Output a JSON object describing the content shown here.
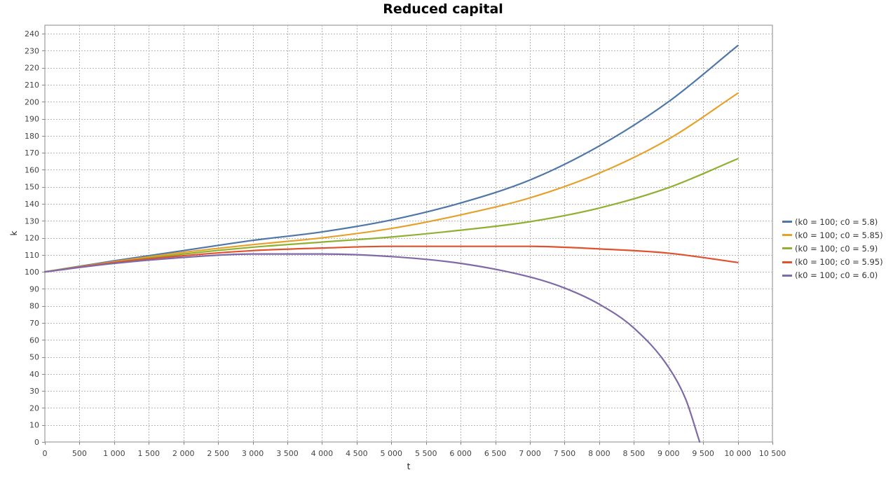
{
  "chart_data": {
    "type": "line",
    "title": "Reduced capital",
    "xlabel": "t",
    "ylabel": "k",
    "xlim": [
      0,
      10500
    ],
    "ylim": [
      0,
      245
    ],
    "x_ticks": [
      0,
      500,
      1000,
      1500,
      2000,
      2500,
      3000,
      3500,
      4000,
      4500,
      5000,
      5500,
      6000,
      6500,
      7000,
      7500,
      8000,
      8500,
      9000,
      9500,
      10000,
      10500
    ],
    "x_tick_labels": [
      "0",
      "500",
      "1 000",
      "1 500",
      "2 000",
      "2 500",
      "3 000",
      "3 500",
      "4 000",
      "4 500",
      "5 000",
      "5 500",
      "6 000",
      "6 500",
      "7 000",
      "7 500",
      "8 000",
      "8 500",
      "9 000",
      "9 500",
      "10 000",
      "10 500"
    ],
    "y_ticks": [
      0,
      10,
      20,
      30,
      40,
      50,
      60,
      70,
      80,
      90,
      100,
      110,
      120,
      130,
      140,
      150,
      160,
      170,
      180,
      190,
      200,
      210,
      220,
      230,
      240
    ],
    "grid": true,
    "legend_position": "right",
    "series": [
      {
        "name": "(k0 = 100; c0 = 5.8)",
        "color": "#4e76a8",
        "x": [
          0,
          1000,
          2000,
          3000,
          4000,
          5000,
          6000,
          7000,
          8000,
          9000,
          10000
        ],
        "y": [
          100,
          106.5,
          112.5,
          118.5,
          123.5,
          130.5,
          140.5,
          154,
          174,
          200,
          233
        ]
      },
      {
        "name": "(k0 = 100; c0 = 5.85)",
        "color": "#e5a12a",
        "x": [
          0,
          1000,
          2000,
          3000,
          4000,
          5000,
          6000,
          7000,
          8000,
          9000,
          10000
        ],
        "y": [
          100,
          106,
          111.5,
          116,
          120,
          125.5,
          133.5,
          143.5,
          158,
          178,
          205
        ]
      },
      {
        "name": "(k0 = 100; c0 = 5.9)",
        "color": "#8fb031",
        "x": [
          0,
          1000,
          2000,
          3000,
          4000,
          5000,
          6000,
          7000,
          8000,
          9000,
          10000
        ],
        "y": [
          100,
          105.5,
          110.5,
          114.5,
          117.5,
          120.5,
          124.5,
          129.5,
          137.5,
          149.5,
          166.5
        ]
      },
      {
        "name": "(k0 = 100; c0 = 5.95)",
        "color": "#e0512e",
        "x": [
          0,
          1000,
          2000,
          3000,
          4000,
          5000,
          6000,
          7000,
          8000,
          9000,
          10000
        ],
        "y": [
          100,
          105.5,
          109.5,
          112.5,
          114,
          115,
          115,
          115,
          113.5,
          111,
          105.5
        ]
      },
      {
        "name": "(k0 = 100; c0 = 6.0)",
        "color": "#7e6aa8",
        "x": [
          0,
          1000,
          2000,
          3000,
          4000,
          5000,
          6000,
          7000,
          7500,
          8000,
          8500,
          9000,
          9250,
          9450
        ],
        "y": [
          100,
          105,
          108.5,
          110.5,
          110.5,
          109,
          105,
          97,
          90.5,
          81,
          67,
          44,
          25,
          0
        ]
      }
    ]
  }
}
